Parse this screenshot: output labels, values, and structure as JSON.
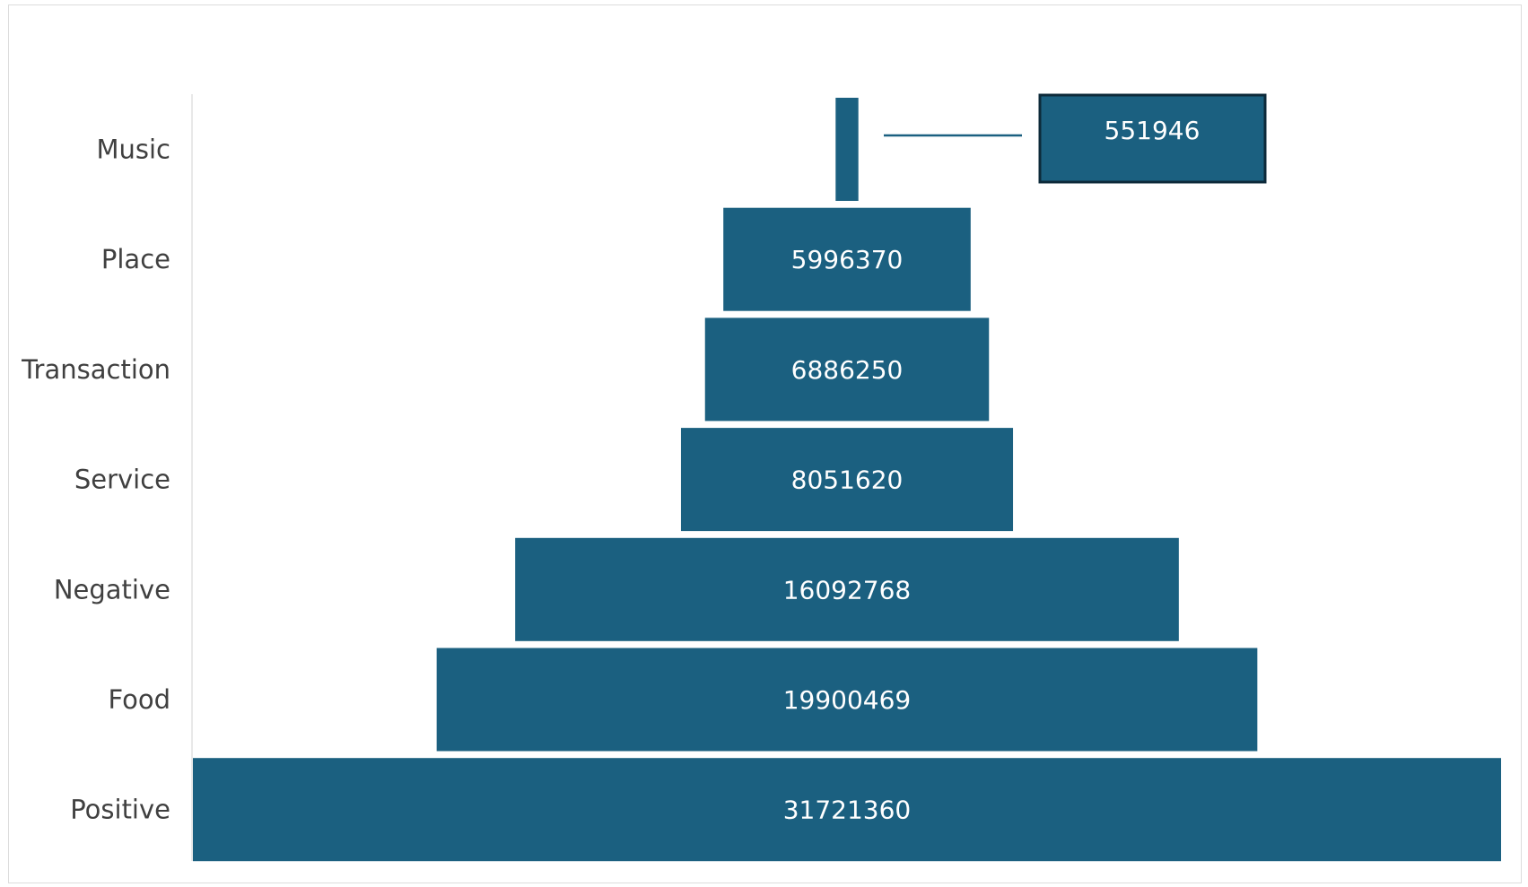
{
  "chart_data": {
    "type": "bar",
    "subtype": "funnel",
    "title": "",
    "xlabel": "",
    "ylabel": "",
    "categories": [
      "Music",
      "Place",
      "Transaction",
      "Service",
      "Negative",
      "Food",
      "Positive"
    ],
    "values": [
      551946,
      5996370,
      6886250,
      8051620,
      16092768,
      19900469,
      31721360
    ],
    "data_labels": [
      "551946",
      "5996370",
      "6886250",
      "8051620",
      "16092768",
      "19900469",
      "31721360"
    ],
    "callout_category": "Music",
    "bar_color": "#1b6080",
    "callout_border_color": "#0d2a3a",
    "label_color": "#404040",
    "value_label_color": "#ffffff",
    "grid": false,
    "legend": "none"
  }
}
